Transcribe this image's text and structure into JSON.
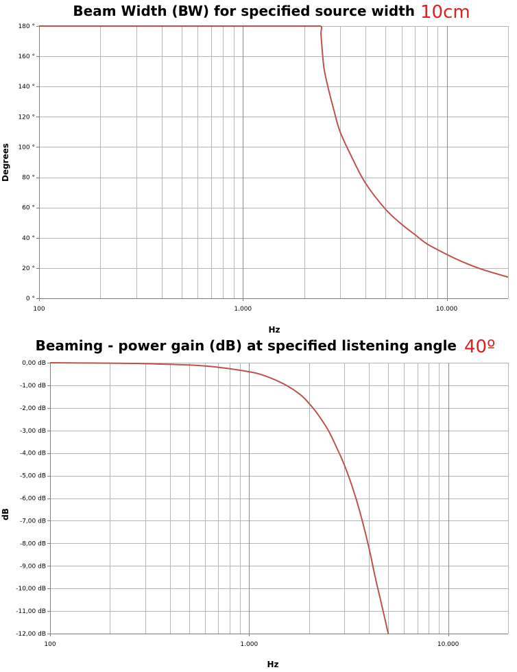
{
  "chart_data": [
    {
      "type": "line",
      "title": "Beam Width (BW) for specified source width",
      "title_accent": "10cm",
      "xlabel": "Hz",
      "ylabel": "Degrees",
      "x_scale": "log",
      "xlim": [
        100,
        20000
      ],
      "ylim": [
        0,
        180
      ],
      "x_ticks": [
        {
          "value": 100,
          "label": "100"
        },
        {
          "value": 1000,
          "label": "1.000"
        },
        {
          "value": 10000,
          "label": "10.000"
        }
      ],
      "y_ticks": [
        {
          "value": 180,
          "label": "180 °"
        },
        {
          "value": 160,
          "label": "160 °"
        },
        {
          "value": 140,
          "label": "140 °"
        },
        {
          "value": 120,
          "label": "120 °"
        },
        {
          "value": 100,
          "label": "100 °"
        },
        {
          "value": 80,
          "label": "80 °"
        },
        {
          "value": 60,
          "label": "60 °"
        },
        {
          "value": 40,
          "label": "40 °"
        },
        {
          "value": 20,
          "label": "20 °"
        },
        {
          "value": 0,
          "label": "0 °"
        }
      ],
      "grid": true,
      "series_color": "#c0504d",
      "series": [
        {
          "x": [
            100,
            500,
            1000,
            2000,
            2400,
            2415,
            2450,
            2500,
            2600,
            2800,
            3000,
            3430,
            4000,
            5000,
            6000,
            7000,
            8000,
            10000,
            12000,
            15000,
            20000
          ],
          "values": [
            180,
            180,
            180,
            180,
            180,
            175,
            164,
            152,
            141,
            124,
            110,
            93,
            76,
            59,
            49,
            42,
            36,
            29,
            24,
            19,
            14
          ]
        }
      ]
    },
    {
      "type": "line",
      "title": "Beaming - power gain (dB) at specified listening angle",
      "title_accent": "40º",
      "xlabel": "Hz",
      "ylabel": "dB",
      "x_scale": "log",
      "xlim": [
        100,
        20000
      ],
      "ylim": [
        -12,
        0
      ],
      "x_ticks": [
        {
          "value": 100,
          "label": "100"
        },
        {
          "value": 1000,
          "label": "1.000"
        },
        {
          "value": 10000,
          "label": "10.000"
        }
      ],
      "y_ticks": [
        {
          "value": 0,
          "label": "0,00 dB"
        },
        {
          "value": -1,
          "label": "-1,00 dB"
        },
        {
          "value": -2,
          "label": "-2,00 dB"
        },
        {
          "value": -3,
          "label": "-3,00 dB"
        },
        {
          "value": -4,
          "label": "-4,00 dB"
        },
        {
          "value": -5,
          "label": "-5,00 dB"
        },
        {
          "value": -6,
          "label": "-6,00 dB"
        },
        {
          "value": -7,
          "label": "-7,00 dB"
        },
        {
          "value": -8,
          "label": "-8,00 dB"
        },
        {
          "value": -9,
          "label": "-9,00 dB"
        },
        {
          "value": -10,
          "label": "-10,00 dB"
        },
        {
          "value": -11,
          "label": "-11,00 dB"
        },
        {
          "value": -12,
          "label": "-12,00 dB"
        }
      ],
      "grid": true,
      "series_color": "#c0504d",
      "series": [
        {
          "x": [
            100,
            200,
            300,
            500,
            700,
            1000,
            1200,
            1500,
            1800,
            2000,
            2200,
            2500,
            2800,
            3000,
            3300,
            3600,
            4000,
            4300,
            4600,
            5000
          ],
          "values": [
            0,
            -0.02,
            -0.04,
            -0.1,
            -0.2,
            -0.4,
            -0.58,
            -0.95,
            -1.4,
            -1.8,
            -2.25,
            -3.0,
            -3.9,
            -4.5,
            -5.5,
            -6.6,
            -8.2,
            -9.5,
            -10.6,
            -12.0
          ]
        }
      ]
    }
  ]
}
